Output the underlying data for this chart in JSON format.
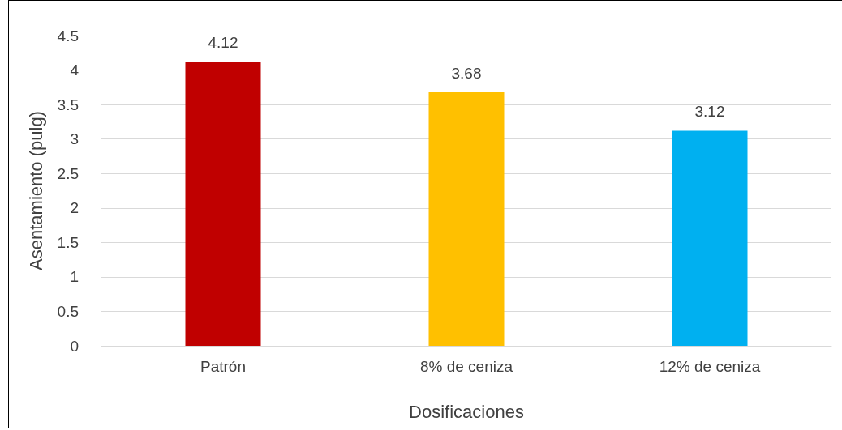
{
  "chart_data": {
    "type": "bar",
    "xlabel": "Dosificaciones",
    "ylabel": "Asentamiento (pulg)",
    "categories": [
      "Patrón",
      "8% de ceniza",
      "12% de ceniza"
    ],
    "values": [
      4.12,
      3.68,
      3.12
    ],
    "colors": [
      "#c00000",
      "#ffc000",
      "#00b0f0"
    ],
    "ylim": [
      0,
      4.5
    ],
    "yticks": [
      0,
      0.5,
      1,
      1.5,
      2,
      2.5,
      3,
      3.5,
      4,
      4.5
    ],
    "grid": "y",
    "data_labels": true
  }
}
